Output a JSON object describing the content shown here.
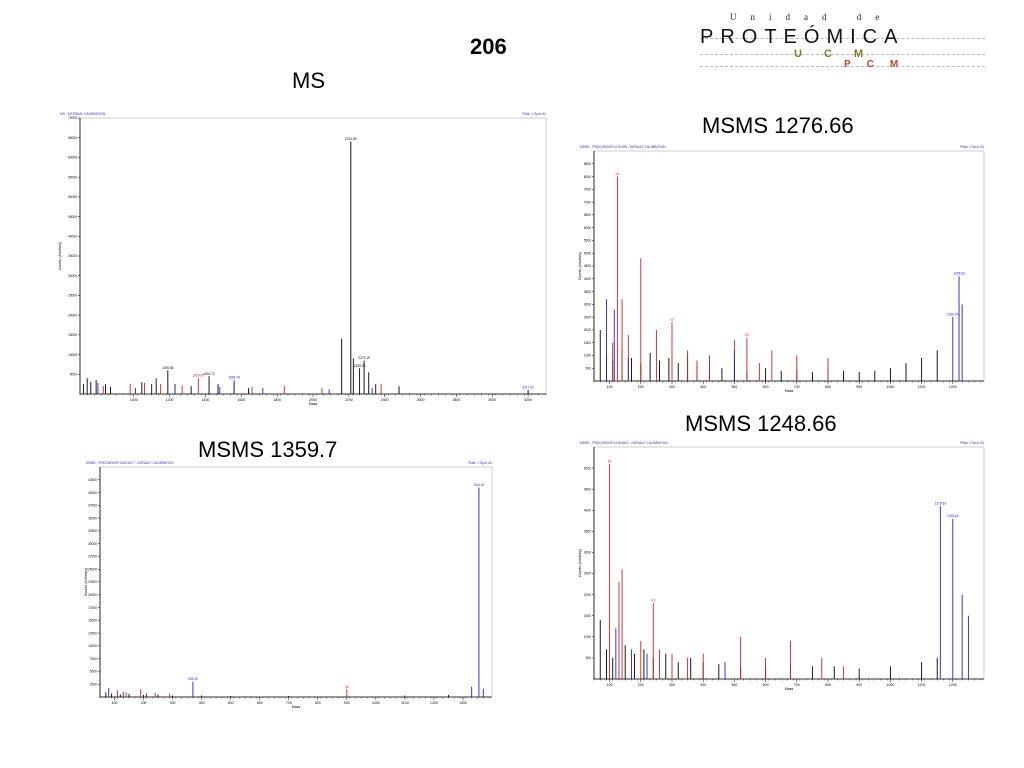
{
  "slide_number": "206",
  "logo": {
    "top_text": "Unidad de",
    "main_text": "PROTEÓMICA",
    "ucm_text": "UCM",
    "pcm_text": "PCM"
  },
  "colors": {
    "peak_black": "#000000",
    "peak_red": "#cc2222",
    "peak_blue": "#2222cc",
    "axis": "#000000"
  },
  "chart_data": [
    {
      "id": "ms",
      "type": "line",
      "title": "MS",
      "header_left": "MS - INTERNAL CALIBRATION",
      "header_right": "Plate: 1 Spot: 82",
      "xlabel": "Mass",
      "ylabel": "Counts (Arbitrary)",
      "xlim": [
        700,
        3300
      ],
      "ylim": [
        0,
        70000
      ],
      "x_ticks": [
        1000,
        1200,
        1400,
        1600,
        1800,
        2000,
        2200,
        2400,
        2600,
        2800,
        3000,
        3200
      ],
      "y_ticks": [
        5000,
        10000,
        15000,
        20000,
        25000,
        30000,
        35000,
        40000,
        45000,
        50000,
        55000,
        60000,
        65000,
        70000
      ],
      "peaks": {
        "black": [
          [
            720,
            2500
          ],
          [
            740,
            4000
          ],
          [
            760,
            3000
          ],
          [
            790,
            3500
          ],
          [
            842,
            2500
          ],
          [
            870,
            1800
          ],
          [
            1045,
            3000
          ],
          [
            1100,
            2500
          ],
          [
            1125,
            4000
          ],
          [
            1190,
            6000
          ],
          [
            1230,
            2500
          ],
          [
            1320,
            2000
          ],
          [
            1420,
            4500
          ],
          [
            1470,
            2500
          ],
          [
            1560,
            3000
          ],
          [
            1640,
            1500
          ],
          [
            2160,
            14000
          ],
          [
            2211,
            64000
          ],
          [
            2225,
            9000
          ],
          [
            2260,
            6500
          ],
          [
            2285,
            8500
          ],
          [
            2311,
            5500
          ],
          [
            2350,
            2500
          ],
          [
            2480,
            2000
          ],
          [
            3200,
            1000
          ]
        ],
        "red": [
          [
            830,
            2000
          ],
          [
            980,
            2600
          ],
          [
            1060,
            2800
          ],
          [
            1150,
            2500
          ],
          [
            1270,
            2200
          ],
          [
            1360,
            4000
          ],
          [
            1660,
            1800
          ],
          [
            1840,
            2000
          ],
          [
            2050,
            1500
          ],
          [
            2380,
            2600
          ]
        ],
        "blue": [
          [
            760,
            3000
          ],
          [
            800,
            2800
          ],
          [
            1010,
            1500
          ],
          [
            1230,
            1800
          ],
          [
            1480,
            1800
          ],
          [
            1560,
            3500
          ],
          [
            1720,
            1500
          ],
          [
            2090,
            1200
          ],
          [
            2330,
            1500
          ]
        ]
      },
      "labels": [
        {
          "x": 2211,
          "y": 64000,
          "text": "2211.09",
          "c": "black"
        },
        {
          "x": 1190,
          "y": 6000,
          "text": "1190.56",
          "c": "black"
        },
        {
          "x": 1360,
          "y": 4000,
          "text": "1350.60",
          "c": "red"
        },
        {
          "x": 1420,
          "y": 4500,
          "text": "1431.72",
          "c": "black"
        },
        {
          "x": 2285,
          "y": 8500,
          "text": "2273.19",
          "c": "black"
        },
        {
          "x": 2260,
          "y": 6500,
          "text": "2239.20",
          "c": "black"
        },
        {
          "x": 1560,
          "y": 3500,
          "text": "1565.74",
          "c": "blue"
        },
        {
          "x": 3200,
          "y": 1000,
          "text": "3217.42",
          "c": "blue"
        }
      ]
    },
    {
      "id": "msms1",
      "type": "line",
      "title": "MSMS 1276.66",
      "header_left": "MSMS - PRECURSOR 1276.659 - DEFAULT CALIBRATION",
      "header_right": "Plate: 1 Spot: 82",
      "xlabel": "Mass",
      "ylabel": "Counts (Arbitrary)",
      "xlim": [
        50,
        1300
      ],
      "ylim": [
        0,
        9000
      ],
      "x_ticks": [
        100,
        200,
        300,
        400,
        500,
        600,
        700,
        800,
        900,
        1000,
        1100,
        1200
      ],
      "y_ticks": [
        500,
        1000,
        1500,
        2000,
        2500,
        3000,
        3500,
        4000,
        4500,
        5000,
        5500,
        6000,
        6500,
        7000,
        7500,
        8000,
        8500
      ],
      "peaks": {
        "black": [
          [
            70,
            2000
          ],
          [
            90,
            1000
          ],
          [
            110,
            800
          ],
          [
            140,
            1200
          ],
          [
            170,
            900
          ],
          [
            200,
            700
          ],
          [
            230,
            1100
          ],
          [
            260,
            800
          ],
          [
            290,
            900
          ],
          [
            320,
            700
          ],
          [
            350,
            1000
          ],
          [
            380,
            600
          ],
          [
            420,
            800
          ],
          [
            460,
            500
          ],
          [
            500,
            700
          ],
          [
            540,
            400
          ],
          [
            600,
            500
          ],
          [
            650,
            400
          ],
          [
            700,
            450
          ],
          [
            750,
            350
          ],
          [
            800,
            500
          ],
          [
            850,
            400
          ],
          [
            900,
            350
          ],
          [
            950,
            400
          ],
          [
            1000,
            500
          ],
          [
            1050,
            700
          ],
          [
            1100,
            900
          ],
          [
            1150,
            1200
          ]
        ],
        "red": [
          [
            110,
            1500
          ],
          [
            125,
            8000
          ],
          [
            140,
            3200
          ],
          [
            160,
            1800
          ],
          [
            200,
            4800
          ],
          [
            250,
            2000
          ],
          [
            300,
            2300
          ],
          [
            350,
            1200
          ],
          [
            380,
            800
          ],
          [
            420,
            1000
          ],
          [
            500,
            1600
          ],
          [
            540,
            1700
          ],
          [
            580,
            700
          ],
          [
            620,
            1200
          ],
          [
            700,
            1000
          ],
          [
            800,
            900
          ]
        ],
        "blue": [
          [
            90,
            3200
          ],
          [
            115,
            2800
          ],
          [
            160,
            900
          ],
          [
            230,
            800
          ],
          [
            500,
            1200
          ],
          [
            1200,
            2500
          ],
          [
            1220,
            4100
          ],
          [
            1230,
            3000
          ]
        ]
      },
      "labels": [
        {
          "x": 125,
          "y": 8000,
          "text": "b2",
          "c": "red"
        },
        {
          "x": 1220,
          "y": 4100,
          "text": "1258.63",
          "c": "blue"
        },
        {
          "x": 1200,
          "y": 2500,
          "text": "1160.70",
          "c": "blue"
        },
        {
          "x": 300,
          "y": 2300,
          "text": "y3",
          "c": "red"
        },
        {
          "x": 540,
          "y": 1700,
          "text": "b5",
          "c": "red"
        }
      ]
    },
    {
      "id": "msms3",
      "type": "line",
      "title": "MSMS 1248.66",
      "header_left": "MSMS - PRECURSOR 1248.6647 - DEFAULT CALIBRATION",
      "header_right": "Plate: 1 Spot: 82",
      "xlabel": "Mass",
      "ylabel": "Counts (Arbitrary)",
      "xlim": [
        50,
        1300
      ],
      "ylim": [
        0,
        5500
      ],
      "x_ticks": [
        100,
        200,
        300,
        400,
        500,
        600,
        700,
        800,
        900,
        1000,
        1100,
        1200
      ],
      "y_ticks": [
        500,
        1000,
        1500,
        2000,
        2500,
        3000,
        3500,
        4000,
        4500,
        5000
      ],
      "peaks": {
        "black": [
          [
            70,
            1400
          ],
          [
            90,
            700
          ],
          [
            110,
            500
          ],
          [
            150,
            800
          ],
          [
            180,
            600
          ],
          [
            210,
            700
          ],
          [
            240,
            500
          ],
          [
            280,
            600
          ],
          [
            320,
            400
          ],
          [
            360,
            500
          ],
          [
            400,
            400
          ],
          [
            450,
            350
          ],
          [
            520,
            300
          ],
          [
            600,
            300
          ],
          [
            680,
            350
          ],
          [
            750,
            300
          ],
          [
            820,
            300
          ],
          [
            900,
            250
          ],
          [
            1000,
            300
          ],
          [
            1100,
            400
          ],
          [
            1150,
            500
          ]
        ],
        "red": [
          [
            100,
            5100
          ],
          [
            130,
            2300
          ],
          [
            140,
            2600
          ],
          [
            200,
            900
          ],
          [
            240,
            1800
          ],
          [
            260,
            700
          ],
          [
            300,
            600
          ],
          [
            350,
            500
          ],
          [
            400,
            600
          ],
          [
            520,
            1000
          ],
          [
            600,
            500
          ],
          [
            680,
            900
          ],
          [
            780,
            500
          ],
          [
            850,
            300
          ]
        ],
        "blue": [
          [
            120,
            1200
          ],
          [
            170,
            700
          ],
          [
            220,
            600
          ],
          [
            470,
            400
          ],
          [
            1160,
            4100
          ],
          [
            1200,
            3800
          ],
          [
            1230,
            2000
          ],
          [
            1250,
            1500
          ]
        ]
      },
      "labels": [
        {
          "x": 100,
          "y": 5100,
          "text": "b2",
          "c": "red"
        },
        {
          "x": 1160,
          "y": 4100,
          "text": "1215.63",
          "c": "blue"
        },
        {
          "x": 1200,
          "y": 3800,
          "text": "1233.64",
          "c": "blue"
        },
        {
          "x": 240,
          "y": 1800,
          "text": "b3",
          "c": "red"
        }
      ]
    },
    {
      "id": "msms2",
      "type": "line",
      "title": "MSMS 1359.7",
      "header_left": "MSMS - PRECURSOR 1359.6477 - DEFAULT CALIBRATION",
      "header_right": "Plate: 1 Spot: 82",
      "xlabel": "Mass",
      "ylabel": "Counts (Arbitrary)",
      "xlim": [
        50,
        1400
      ],
      "ylim": [
        0,
        45000
      ],
      "x_ticks": [
        100,
        200,
        300,
        400,
        500,
        600,
        700,
        800,
        900,
        1000,
        1100,
        1200,
        1300
      ],
      "y_ticks": [
        2500,
        5000,
        7500,
        10000,
        12500,
        15000,
        17500,
        20000,
        22500,
        25000,
        27500,
        30000,
        32500,
        35000,
        37500,
        40000,
        42500
      ],
      "peaks": {
        "black": [
          [
            70,
            900
          ],
          [
            90,
            700
          ],
          [
            120,
            500
          ],
          [
            150,
            600
          ],
          [
            200,
            400
          ],
          [
            250,
            500
          ],
          [
            300,
            300
          ],
          [
            400,
            300
          ],
          [
            500,
            200
          ],
          [
            700,
            200
          ],
          [
            900,
            200
          ],
          [
            1100,
            300
          ],
          [
            1250,
            400
          ]
        ],
        "red": [
          [
            110,
            1300
          ],
          [
            140,
            900
          ],
          [
            190,
            1500
          ],
          [
            240,
            800
          ],
          [
            290,
            600
          ],
          [
            900,
            1500
          ]
        ],
        "blue": [
          [
            80,
            1800
          ],
          [
            130,
            1000
          ],
          [
            210,
            700
          ],
          [
            370,
            3000
          ],
          [
            1330,
            2000
          ],
          [
            1355,
            41000
          ],
          [
            1370,
            1600
          ]
        ]
      },
      "labels": [
        {
          "x": 1355,
          "y": 41000,
          "text": "1341.67",
          "c": "blue"
        },
        {
          "x": 370,
          "y": 3000,
          "text": "393.19",
          "c": "blue"
        },
        {
          "x": 900,
          "y": 1500,
          "text": "y8",
          "c": "red"
        }
      ]
    }
  ]
}
